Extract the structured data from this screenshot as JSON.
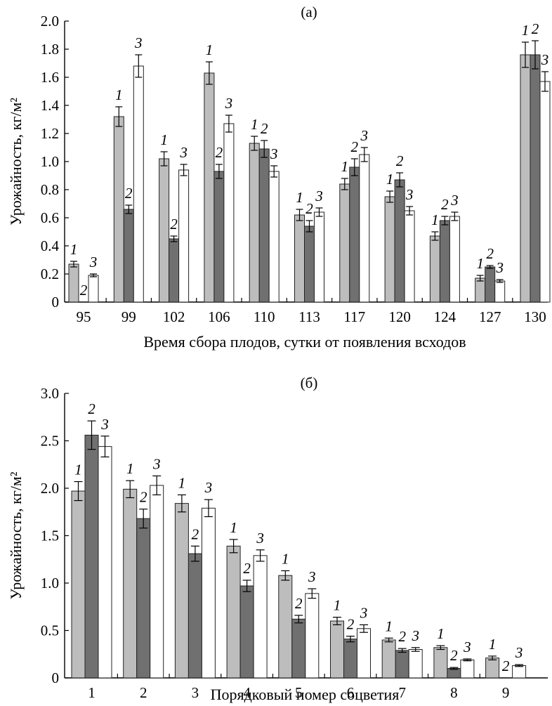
{
  "series_colors": [
    "#bdbdbd",
    "#707070",
    "#ffffff"
  ],
  "chart_data": [
    {
      "type": "bar",
      "title": "(а)",
      "xlabel": "Время сбора плодов, сутки от появления всходов",
      "ylabel": "Урожайность, кг/м²",
      "ylim": [
        0,
        2.0
      ],
      "yticks": [
        "0",
        "0.2",
        "0.4",
        "0.6",
        "0.8",
        "1.0",
        "1.2",
        "1.4",
        "1.6",
        "1.8",
        "2.0"
      ],
      "categories": [
        "95",
        "99",
        "102",
        "106",
        "110",
        "113",
        "117",
        "120",
        "124",
        "127",
        "130"
      ],
      "series": [
        {
          "label": "1",
          "values": [
            0.27,
            1.32,
            1.02,
            1.63,
            1.13,
            0.62,
            0.84,
            0.75,
            0.47,
            0.17,
            1.76
          ],
          "errors": [
            0.02,
            0.07,
            0.05,
            0.08,
            0.05,
            0.04,
            0.04,
            0.04,
            0.03,
            0.02,
            0.09
          ]
        },
        {
          "label": "2",
          "values": [
            0.0,
            0.66,
            0.45,
            0.93,
            1.09,
            0.54,
            0.96,
            0.87,
            0.58,
            0.25,
            1.76
          ],
          "errors": [
            0.0,
            0.03,
            0.02,
            0.05,
            0.06,
            0.04,
            0.06,
            0.05,
            0.03,
            0.01,
            0.1
          ]
        },
        {
          "label": "3",
          "values": [
            0.19,
            1.68,
            0.94,
            1.27,
            0.93,
            0.64,
            1.05,
            0.65,
            0.61,
            0.15,
            1.57
          ],
          "errors": [
            0.01,
            0.08,
            0.04,
            0.06,
            0.04,
            0.03,
            0.05,
            0.03,
            0.03,
            0.01,
            0.07
          ]
        }
      ]
    },
    {
      "type": "bar",
      "title": "(б)",
      "xlabel": "Порядковый номер соцветия",
      "ylabel": "Урожайность, кг/м²",
      "ylim": [
        0,
        3.0
      ],
      "yticks": [
        "0",
        "0.5",
        "1.0",
        "1.5",
        "2.0",
        "2.5",
        "3.0"
      ],
      "categories": [
        "1",
        "2",
        "3",
        "4",
        "5",
        "6",
        "7",
        "8",
        "9"
      ],
      "series": [
        {
          "label": "1",
          "values": [
            1.97,
            1.99,
            1.84,
            1.39,
            1.08,
            0.6,
            0.4,
            0.32,
            0.21
          ],
          "errors": [
            0.1,
            0.09,
            0.09,
            0.07,
            0.05,
            0.04,
            0.02,
            0.02,
            0.02
          ]
        },
        {
          "label": "2",
          "values": [
            2.56,
            1.68,
            1.31,
            0.97,
            0.62,
            0.41,
            0.29,
            0.1,
            0.0
          ],
          "errors": [
            0.15,
            0.1,
            0.08,
            0.06,
            0.04,
            0.03,
            0.02,
            0.01,
            0.0
          ]
        },
        {
          "label": "3",
          "values": [
            2.44,
            2.03,
            1.79,
            1.29,
            0.89,
            0.52,
            0.3,
            0.19,
            0.13
          ],
          "errors": [
            0.11,
            0.1,
            0.09,
            0.06,
            0.05,
            0.04,
            0.02,
            0.01,
            0.01
          ]
        }
      ]
    }
  ]
}
